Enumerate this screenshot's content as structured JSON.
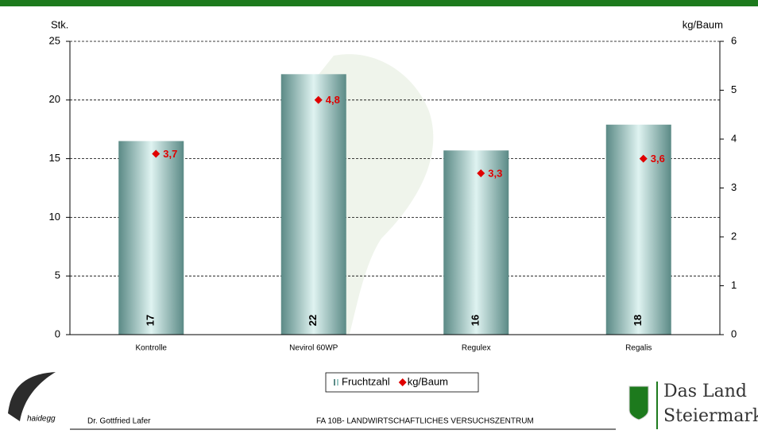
{
  "chart_data": {
    "type": "bar",
    "y_label": "Stk.",
    "y2_label": "kg/Baum",
    "categories": [
      "Kontrolle",
      "Nevirol 60WP",
      "Regulex",
      "Regalis"
    ],
    "series": [
      {
        "name": "Fruchtzahl",
        "type": "bar",
        "values": [
          16.5,
          22.2,
          15.7,
          17.9
        ],
        "value_labels": [
          "17",
          "22",
          "16",
          "18"
        ]
      },
      {
        "name": "kg/Baum",
        "type": "scatter",
        "axis": "y2",
        "color": "#e00000",
        "values": [
          3.7,
          4.8,
          3.3,
          3.6
        ],
        "value_labels": [
          "3,7",
          "4,8",
          "3,3",
          "3,6"
        ]
      }
    ],
    "ylim": [
      0,
      25
    ],
    "yticks": [
      0,
      5,
      10,
      15,
      20,
      25
    ],
    "y2lim": [
      0,
      6
    ],
    "y2ticks": [
      0,
      1,
      2,
      3,
      4,
      5,
      6
    ],
    "grid": true,
    "legend": "bottom"
  },
  "footer": {
    "logo": "haidegg",
    "author": "Dr. Gottfried Lafer",
    "institution": "FA 10B- LANDWIRTSCHAFTLICHES VERSUCHSZENTRUM",
    "brand": [
      "Das Land",
      "Steiermark"
    ]
  }
}
